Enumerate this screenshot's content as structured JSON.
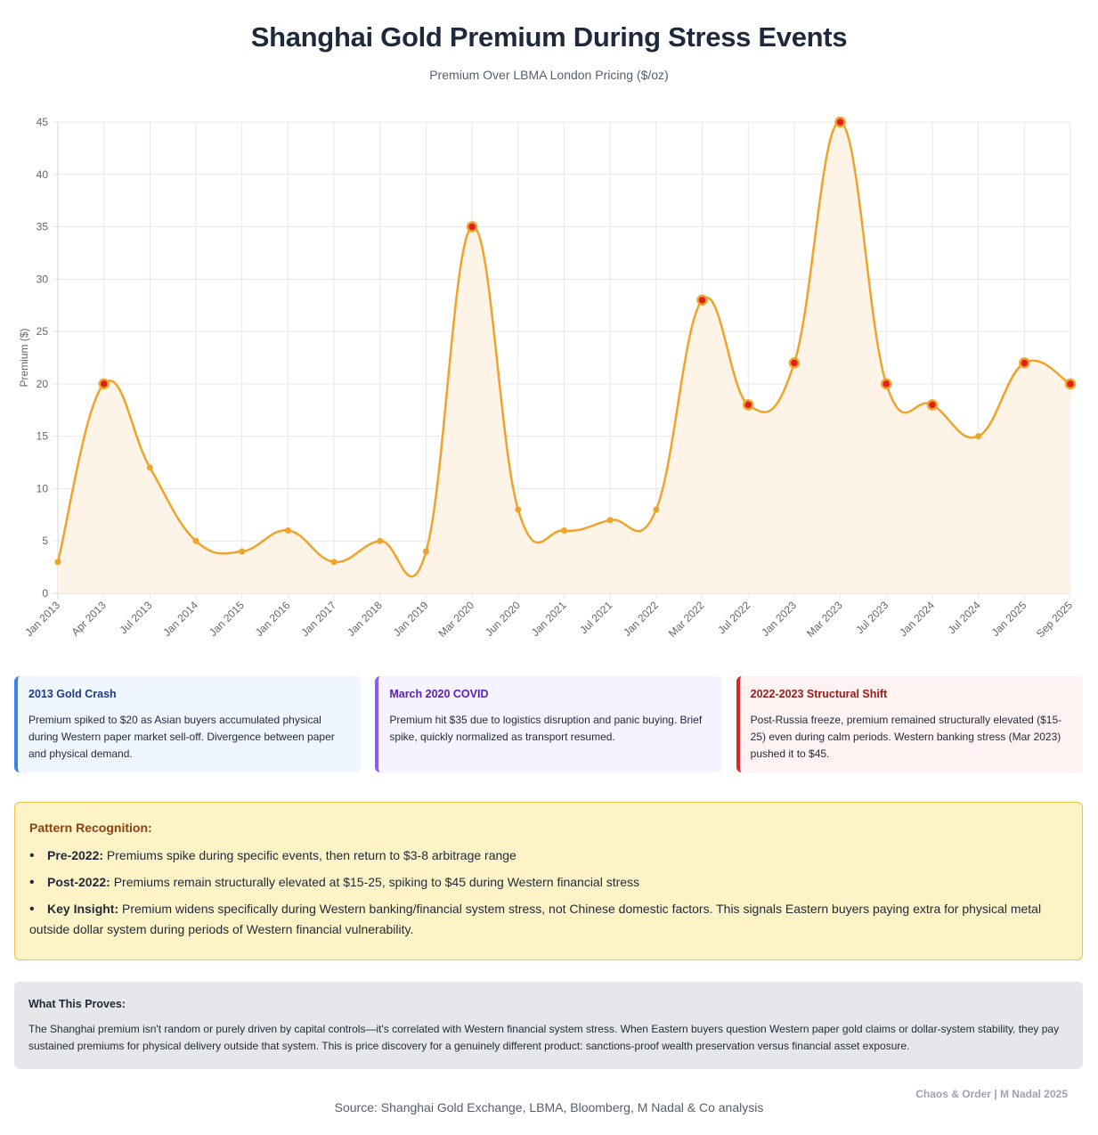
{
  "title": "Shanghai Gold Premium During Stress Events",
  "subtitle": "Premium Over LBMA London Pricing ($/oz)",
  "chart_data": {
    "type": "area",
    "title": "Shanghai Gold Premium During Stress Events",
    "subtitle": "Premium Over LBMA London Pricing ($/oz)",
    "xlabel": "",
    "ylabel": "Premium ($)",
    "ylim": [
      0,
      45
    ],
    "yticks": [
      0,
      5,
      10,
      15,
      20,
      25,
      30,
      35,
      40,
      45
    ],
    "grid": true,
    "legend": "none",
    "line_color": "#f0a32a",
    "fill_color": "#fdf4e7",
    "highlight_color": "#e11d1d",
    "categories": [
      "Jan 2013",
      "Apr 2013",
      "Jul 2013",
      "Jan 2014",
      "Jan 2015",
      "Jan 2016",
      "Jan 2017",
      "Jan 2018",
      "Jan 2019",
      "Mar 2020",
      "Jun 2020",
      "Jan 2021",
      "Jul 2021",
      "Jan 2022",
      "Mar 2022",
      "Jul 2022",
      "Jan 2023",
      "Mar 2023",
      "Jul 2023",
      "Jan 2024",
      "Jul 2024",
      "Jan 2025",
      "Sep 2025"
    ],
    "values": [
      3,
      20,
      12,
      5,
      4,
      6,
      3,
      5,
      4,
      35,
      8,
      6,
      7,
      8,
      28,
      18,
      22,
      45,
      20,
      18,
      15,
      22,
      20
    ],
    "highlighted": [
      false,
      true,
      false,
      false,
      false,
      false,
      false,
      false,
      false,
      true,
      false,
      false,
      false,
      false,
      true,
      true,
      true,
      true,
      true,
      true,
      false,
      true,
      true
    ]
  },
  "cards": [
    {
      "title": "2013 Gold Crash",
      "text": "Premium spiked to $20 as Asian buyers accumulated physical during Western paper market sell-off. Divergence between paper and physical demand."
    },
    {
      "title": "March 2020 COVID",
      "text": "Premium hit $35 due to logistics disruption and panic buying. Brief spike, quickly normalized as transport resumed."
    },
    {
      "title": "2022-2023 Structural Shift",
      "text": "Post-Russia freeze, premium remained structurally elevated ($15-25) even during calm periods. Western banking stress (Mar 2023) pushed it to $45."
    }
  ],
  "pattern": {
    "heading": "Pattern Recognition:",
    "items": [
      {
        "label": "Pre-2022:",
        "text": " Premiums spike during specific events, then return to $3-8 arbitrage range"
      },
      {
        "label": "Post-2022:",
        "text": " Premiums remain structurally elevated at $15-25, spiking to $45 during Western financial stress"
      },
      {
        "label": "Key Insight:",
        "text": " Premium widens specifically during Western banking/financial system stress, not Chinese domestic factors. This signals Eastern buyers paying extra for physical metal outside dollar system during periods of Western financial vulnerability."
      }
    ]
  },
  "proves": {
    "heading": "What This Proves:",
    "text": "The Shanghai premium isn't random or purely driven by capital controls—it's correlated with Western financial system stress. When Eastern buyers question Western paper gold claims or dollar-system stability, they pay sustained premiums for physical delivery outside that system. This is price discovery for a genuinely different product: sanctions-proof wealth preservation versus financial asset exposure."
  },
  "brand": "Chaos & Order | M Nadal 2025",
  "source": "Source: Shanghai Gold Exchange, LBMA, Bloomberg, M Nadal & Co analysis"
}
